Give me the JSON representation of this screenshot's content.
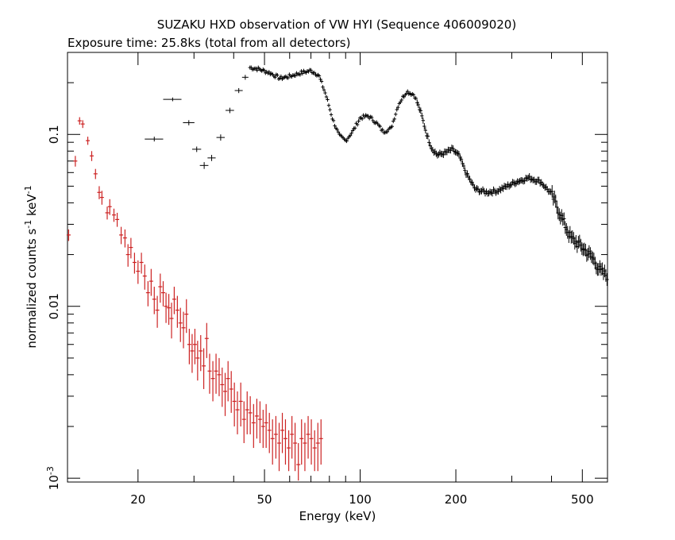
{
  "chart_data": {
    "type": "scatter",
    "title": "SUZAKU HXD observation of VW HYI (Sequence 406009020)",
    "subtitle": "Exposure time: 25.8ks (total from all detectors)",
    "xlabel": "Energy (keV)",
    "ylabel_parts": [
      "normalized counts s",
      "-1",
      " keV",
      "-1"
    ],
    "xscale": "log",
    "yscale": "log",
    "xlim": [
      12,
      600
    ],
    "ylim": [
      0.00095,
      0.3
    ],
    "x_ticks": [
      {
        "value": 20,
        "label": "20"
      },
      {
        "value": 50,
        "label": "50"
      },
      {
        "value": 100,
        "label": "100"
      },
      {
        "value": 200,
        "label": "200"
      },
      {
        "value": 500,
        "label": "500"
      }
    ],
    "y_ticks": [
      {
        "value": 0.1,
        "label": "0.1"
      },
      {
        "value": 0.01,
        "label": "0.01"
      },
      {
        "value": 0.001,
        "label_base": "10",
        "label_exp": "-3"
      }
    ],
    "colors": {
      "red_series": "#cc2222",
      "black_series": "#000000",
      "axes": "#000000"
    },
    "series": [
      {
        "name": "",
        "color": "red",
        "points": [
          [
            12.1,
            0.026,
            0.002
          ],
          [
            12.7,
            0.07,
            0.005
          ],
          [
            13.1,
            0.12,
            0.006
          ],
          [
            13.4,
            0.115,
            0.006
          ],
          [
            13.9,
            0.092,
            0.005
          ],
          [
            14.3,
            0.075,
            0.005
          ],
          [
            14.7,
            0.059,
            0.004
          ],
          [
            15.1,
            0.046,
            0.004
          ],
          [
            15.4,
            0.043,
            0.004
          ],
          [
            16.0,
            0.035,
            0.003
          ],
          [
            16.3,
            0.038,
            0.004
          ],
          [
            16.8,
            0.034,
            0.003
          ],
          [
            17.2,
            0.032,
            0.003
          ],
          [
            17.7,
            0.026,
            0.003
          ],
          [
            18.2,
            0.025,
            0.003
          ],
          [
            18.6,
            0.02,
            0.003
          ],
          [
            19.0,
            0.022,
            0.003
          ],
          [
            19.5,
            0.018,
            0.0025
          ],
          [
            20.0,
            0.016,
            0.0025
          ],
          [
            20.5,
            0.018,
            0.0025
          ],
          [
            21.0,
            0.015,
            0.0025
          ],
          [
            21.5,
            0.012,
            0.002
          ],
          [
            22.0,
            0.014,
            0.0025
          ],
          [
            22.5,
            0.011,
            0.002
          ],
          [
            23.0,
            0.0095,
            0.002
          ],
          [
            23.5,
            0.013,
            0.0025
          ],
          [
            24.0,
            0.012,
            0.002
          ],
          [
            24.5,
            0.01,
            0.002
          ],
          [
            25.0,
            0.0098,
            0.002
          ],
          [
            25.5,
            0.0085,
            0.002
          ],
          [
            26.0,
            0.011,
            0.002
          ],
          [
            26.6,
            0.0095,
            0.002
          ],
          [
            27.2,
            0.008,
            0.0018
          ],
          [
            27.8,
            0.0075,
            0.0018
          ],
          [
            28.4,
            0.009,
            0.002
          ],
          [
            29.0,
            0.006,
            0.0014
          ],
          [
            29.6,
            0.0055,
            0.0014
          ],
          [
            30.2,
            0.006,
            0.0014
          ],
          [
            30.8,
            0.005,
            0.0013
          ],
          [
            31.5,
            0.0055,
            0.0013
          ],
          [
            32.2,
            0.0045,
            0.0012
          ],
          [
            32.9,
            0.0065,
            0.0015
          ],
          [
            33.6,
            0.0042,
            0.0011
          ],
          [
            34.4,
            0.0038,
            0.001
          ],
          [
            35.2,
            0.0042,
            0.0011
          ],
          [
            36.0,
            0.004,
            0.001
          ],
          [
            36.8,
            0.0035,
            0.0009
          ],
          [
            37.6,
            0.0032,
            0.0009
          ],
          [
            38.4,
            0.0038,
            0.001
          ],
          [
            39.3,
            0.0033,
            0.0009
          ],
          [
            40.2,
            0.0028,
            0.0008
          ],
          [
            41.1,
            0.0025,
            0.0007
          ],
          [
            42.1,
            0.0028,
            0.0008
          ],
          [
            43.1,
            0.0022,
            0.0006
          ],
          [
            44.1,
            0.0025,
            0.0007
          ],
          [
            45.1,
            0.0024,
            0.0006
          ],
          [
            46.2,
            0.0021,
            0.0006
          ],
          [
            47.3,
            0.0023,
            0.0006
          ],
          [
            48.4,
            0.0022,
            0.0006
          ],
          [
            49.5,
            0.002,
            0.0005
          ],
          [
            50.6,
            0.0021,
            0.0006
          ],
          [
            51.8,
            0.0019,
            0.0005
          ],
          [
            53.0,
            0.0017,
            0.0005
          ],
          [
            54.3,
            0.0018,
            0.0005
          ],
          [
            55.6,
            0.0016,
            0.0005
          ],
          [
            56.9,
            0.0019,
            0.0005
          ],
          [
            58.2,
            0.0017,
            0.0005
          ],
          [
            59.6,
            0.0015,
            0.0004
          ],
          [
            61.0,
            0.0018,
            0.0005
          ],
          [
            62.4,
            0.0016,
            0.0005
          ],
          [
            63.9,
            0.0012,
            0.0004
          ],
          [
            65.4,
            0.0017,
            0.0005
          ],
          [
            67.0,
            0.0016,
            0.0005
          ],
          [
            68.6,
            0.0018,
            0.0005
          ],
          [
            70.2,
            0.0017,
            0.0005
          ],
          [
            71.9,
            0.0015,
            0.0004
          ],
          [
            73.6,
            0.0016,
            0.0005
          ],
          [
            75.3,
            0.0017,
            0.0005
          ]
        ]
      },
      {
        "name": "",
        "color": "black",
        "binned": [
          [
            22.5,
            0.094,
            1.5,
            0.003
          ],
          [
            25.7,
            0.16,
            1.7,
            0.004
          ],
          [
            28.9,
            0.117,
            1.2,
            0.004
          ],
          [
            30.6,
            0.082,
            1.0,
            0.003
          ],
          [
            32.3,
            0.066,
            1.0,
            0.003
          ],
          [
            34.1,
            0.073,
            1.0,
            0.003
          ],
          [
            36.4,
            0.096,
            1.1,
            0.004
          ],
          [
            38.9,
            0.138,
            1.2,
            0.005
          ],
          [
            41.5,
            0.18,
            1.2,
            0.006
          ],
          [
            43.5,
            0.215,
            1.0,
            0.007
          ]
        ],
        "anchors": [
          [
            45,
            0.245
          ],
          [
            48,
            0.24
          ],
          [
            52,
            0.228
          ],
          [
            56,
            0.212
          ],
          [
            60,
            0.218
          ],
          [
            65,
            0.228
          ],
          [
            70,
            0.235
          ],
          [
            74,
            0.222
          ],
          [
            78,
            0.17
          ],
          [
            82,
            0.122
          ],
          [
            86,
            0.098
          ],
          [
            90,
            0.092
          ],
          [
            95,
            0.105
          ],
          [
            100,
            0.125
          ],
          [
            106,
            0.128
          ],
          [
            112,
            0.118
          ],
          [
            118,
            0.104
          ],
          [
            125,
            0.108
          ],
          [
            132,
            0.15
          ],
          [
            140,
            0.178
          ],
          [
            148,
            0.17
          ],
          [
            155,
            0.135
          ],
          [
            162,
            0.1
          ],
          [
            168,
            0.083
          ],
          [
            175,
            0.076
          ],
          [
            185,
            0.078
          ],
          [
            195,
            0.082
          ],
          [
            205,
            0.075
          ],
          [
            215,
            0.06
          ],
          [
            230,
            0.048
          ],
          [
            250,
            0.046
          ],
          [
            270,
            0.047
          ],
          [
            290,
            0.05
          ],
          [
            310,
            0.053
          ],
          [
            340,
            0.056
          ],
          [
            370,
            0.053
          ],
          [
            400,
            0.045
          ],
          [
            430,
            0.033
          ],
          [
            460,
            0.025
          ],
          [
            500,
            0.022
          ],
          [
            540,
            0.019
          ],
          [
            570,
            0.016
          ],
          [
            600,
            0.015
          ]
        ]
      }
    ]
  }
}
